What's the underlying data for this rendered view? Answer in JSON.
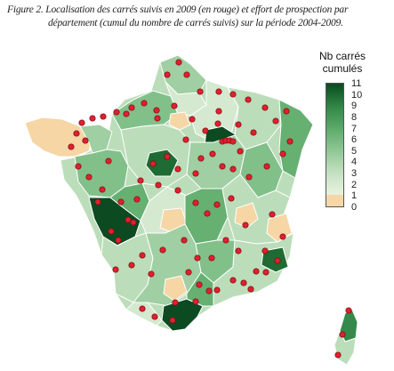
{
  "caption": {
    "line1": "Figure 2. Localisation des carrés suivis en 2009 (en rouge) et effort de prospection par",
    "line2": "département (cumul du nombre de carrés suivis) sur la période 2004-2009."
  },
  "legend": {
    "title_line1": "Nb carrés",
    "title_line2": "cumulés",
    "ticks": [
      "11",
      "10",
      "9",
      "8",
      "7",
      "6",
      "5",
      "4",
      "3",
      "2",
      "1",
      "0"
    ]
  },
  "colors": {
    "zero": "#f5d6a4",
    "scale": [
      "#e7f2de",
      "#d4e9cf",
      "#bcddba",
      "#9fcfa2",
      "#82c08a",
      "#66b072",
      "#4c9d5d",
      "#35894a",
      "#1e6b34",
      "#0c4a22"
    ],
    "dot": "#e0202e",
    "border": "#ffffff"
  }
}
